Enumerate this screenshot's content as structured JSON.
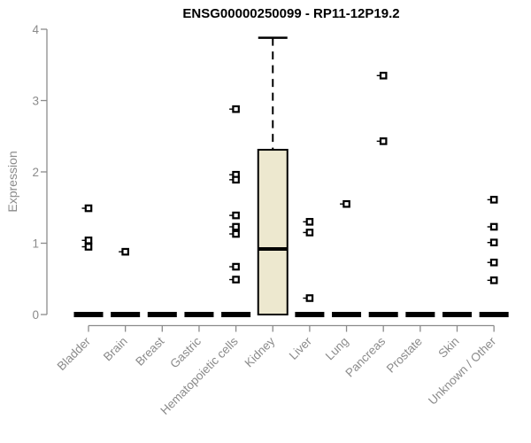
{
  "chart_data": {
    "type": "boxplot",
    "title": "ENSG00000250099 - RP11-12P19.2",
    "ylabel": "Expression",
    "ylim": [
      0,
      4
    ],
    "yticks": [
      0,
      1,
      2,
      3,
      4
    ],
    "grid": false,
    "legend": false,
    "categories": [
      "Bladder",
      "Brain",
      "Breast",
      "Gastric",
      "Hematopoietic cells",
      "Kidney",
      "Liver",
      "Lung",
      "Pancreas",
      "Prostate",
      "Skin",
      "Unknown / Other"
    ],
    "boxes": [
      {
        "category": "Bladder",
        "median": 0,
        "q1": 0,
        "q3": 0,
        "whisker_low": 0,
        "whisker_high": 0,
        "outliers": [
          1.49,
          1.04,
          0.95
        ]
      },
      {
        "category": "Brain",
        "median": 0,
        "q1": 0,
        "q3": 0,
        "whisker_low": 0,
        "whisker_high": 0,
        "outliers": [
          0.88
        ]
      },
      {
        "category": "Breast",
        "median": 0,
        "q1": 0,
        "q3": 0,
        "whisker_low": 0,
        "whisker_high": 0,
        "outliers": []
      },
      {
        "category": "Gastric",
        "median": 0,
        "q1": 0,
        "q3": 0,
        "whisker_low": 0,
        "whisker_high": 0,
        "outliers": []
      },
      {
        "category": "Hematopoietic cells",
        "median": 0,
        "q1": 0,
        "q3": 0,
        "whisker_low": 0,
        "whisker_high": 0,
        "outliers": [
          2.88,
          1.96,
          1.89,
          1.39,
          1.23,
          1.13,
          0.67,
          0.49
        ]
      },
      {
        "category": "Kidney",
        "median": 0.92,
        "q1": 0,
        "q3": 2.31,
        "whisker_low": 0,
        "whisker_high": 3.88,
        "outliers": []
      },
      {
        "category": "Liver",
        "median": 0,
        "q1": 0,
        "q3": 0,
        "whisker_low": 0,
        "whisker_high": 0,
        "outliers": [
          1.3,
          1.15,
          0.23
        ]
      },
      {
        "category": "Lung",
        "median": 0,
        "q1": 0,
        "q3": 0,
        "whisker_low": 0,
        "whisker_high": 0,
        "outliers": [
          1.55
        ]
      },
      {
        "category": "Pancreas",
        "median": 0,
        "q1": 0,
        "q3": 0,
        "whisker_low": 0,
        "whisker_high": 0,
        "outliers": [
          3.35,
          2.43
        ]
      },
      {
        "category": "Prostate",
        "median": 0,
        "q1": 0,
        "q3": 0,
        "whisker_low": 0,
        "whisker_high": 0,
        "outliers": []
      },
      {
        "category": "Skin",
        "median": 0,
        "q1": 0,
        "q3": 0,
        "whisker_low": 0,
        "whisker_high": 0,
        "outliers": []
      },
      {
        "category": "Unknown / Other",
        "median": 0,
        "q1": 0,
        "q3": 0,
        "whisker_low": 0,
        "whisker_high": 0,
        "outliers": [
          1.61,
          1.23,
          1.01,
          0.73,
          0.48
        ]
      }
    ],
    "colors": {
      "box_fill": "#EDE8CF",
      "box_border": "#000000",
      "median": "#000000",
      "whisker": "#000000",
      "outlier": "#000000",
      "axis": "#8B8B8B",
      "tick_label": "#8B8B8B",
      "title": "#000000",
      "background": "#FFFFFF"
    }
  }
}
